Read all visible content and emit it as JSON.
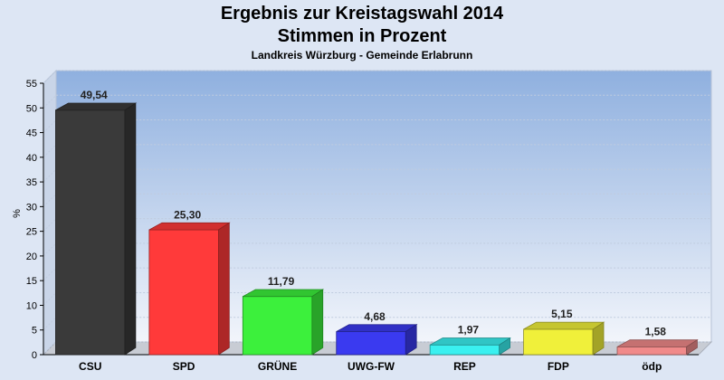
{
  "header": {
    "title": "Ergebnis zur Kreistagswahl 2014",
    "subtitle": "Stimmen in Prozent",
    "caption": "Landkreis Würzburg - Gemeinde Erlabrunn"
  },
  "chart_data": {
    "type": "bar",
    "categories": [
      "CSU",
      "SPD",
      "GRÜNE",
      "UWG-FW",
      "REP",
      "FDP",
      "ödp"
    ],
    "values": [
      49.54,
      25.3,
      11.79,
      4.68,
      1.97,
      5.15,
      1.58
    ],
    "value_labels": [
      "49,54",
      "25,30",
      "11,79",
      "4,68",
      "1,97",
      "5,15",
      "1,58"
    ],
    "colors": [
      "#3a3a3a",
      "#ff3a3a",
      "#3cf03c",
      "#3a3af0",
      "#3af0f0",
      "#f0f03a",
      "#f08a8a"
    ],
    "ylabel": "%",
    "ylim": [
      0,
      55
    ],
    "yticks": [
      0,
      5,
      10,
      15,
      20,
      25,
      30,
      35,
      40,
      45,
      50,
      55
    ],
    "grid": true,
    "legend": "none"
  }
}
